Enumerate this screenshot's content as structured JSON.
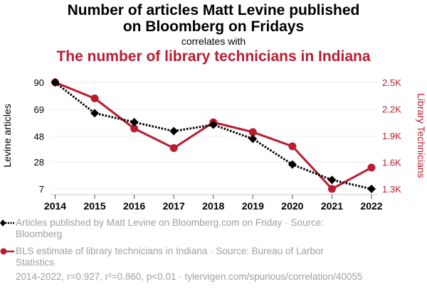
{
  "header": {
    "title": "Number of articles Matt Levine published on Bloomberg on Fridays",
    "subtitle": "correlates with",
    "title2": "The number of library technicians in Indiana"
  },
  "colors": {
    "series1": "#000000",
    "series2": "#ba1c30",
    "grid": "#eeeeee",
    "axis": "#cccccc",
    "legend_text": "#a0a0a0"
  },
  "legend": {
    "items": [
      {
        "label": "Articles published by Matt Levine on Bloomberg.com on Friday · Source: Bloomberg",
        "marker": "diamond-dotted-line"
      },
      {
        "label": "BLS estimate of library technicians in Indiana · Source: Bureau of Larbor Statistics",
        "marker": "circle-solid-line"
      }
    ]
  },
  "footer": {
    "text": "2014-2022, r=0.927, r²=0.860, p<0.01 · tylervigen.com/spurious/correlation/40055"
  },
  "chart_data": {
    "type": "line",
    "title": "Number of articles Matt Levine published on Bloomberg on Fridays correlates with The number of library technicians in Indiana",
    "x": [
      2014,
      2015,
      2016,
      2017,
      2018,
      2019,
      2020,
      2021,
      2022
    ],
    "xticks": [
      "2014",
      "2015",
      "2016",
      "2017",
      "2018",
      "2019",
      "2020",
      "2021",
      "2022"
    ],
    "xlabel": "",
    "grid": true,
    "legend_position": "bottom",
    "series": [
      {
        "name": "Articles published by Matt Levine on Bloomberg.com on Friday",
        "axis": "left",
        "style": "dotted",
        "marker": "diamond",
        "values": [
          90,
          66,
          59,
          52,
          57,
          46,
          26,
          14,
          7
        ]
      },
      {
        "name": "BLS estimate of library technicians in Indiana",
        "axis": "right",
        "style": "solid",
        "marker": "circle",
        "values": [
          2500,
          2320,
          1980,
          1760,
          2050,
          1940,
          1780,
          1300,
          1540
        ]
      }
    ],
    "y_left": {
      "label": "Levine articles",
      "ticks": [
        90,
        69,
        48,
        28,
        7
      ],
      "tick_labels": [
        "90",
        "69",
        "48",
        "28",
        "7"
      ],
      "range": [
        7,
        90
      ]
    },
    "y_right": {
      "label": "Library Technicians",
      "ticks": [
        2500,
        2200,
        1900,
        1600,
        1300
      ],
      "tick_labels": [
        "2.5K",
        "2.2K",
        "1.9K",
        "1.6K",
        "1.3K"
      ],
      "range": [
        1300,
        2500
      ]
    }
  }
}
